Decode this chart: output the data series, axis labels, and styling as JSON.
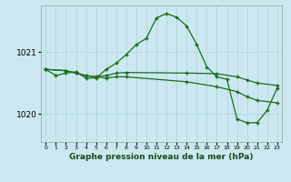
{
  "title": "Graphe pression niveau de la mer (hPa)",
  "bg_color": "#cbe8f0",
  "grid_color": "#b8d8dc",
  "line_color": "#1a6b1a",
  "xlim": [
    -0.5,
    23.5
  ],
  "ylim": [
    1019.55,
    1021.75
  ],
  "yticks": [
    1020,
    1021
  ],
  "xtick_labels": [
    "0",
    "1",
    "2",
    "3",
    "4",
    "5",
    "6",
    "7",
    "8",
    "9",
    "10",
    "11",
    "12",
    "13",
    "14",
    "15",
    "16",
    "17",
    "18",
    "19",
    "20",
    "21",
    "22",
    "23"
  ],
  "series1_x": [
    0,
    1,
    2,
    3,
    4,
    5,
    6,
    7,
    8,
    9,
    10,
    11,
    12,
    13,
    14,
    15,
    16,
    17,
    18,
    19,
    20,
    21,
    22,
    23
  ],
  "series1_y": [
    1020.72,
    1020.62,
    1020.66,
    1020.68,
    1020.58,
    1020.58,
    1020.72,
    1020.82,
    1020.96,
    1021.12,
    1021.22,
    1021.55,
    1021.62,
    1021.56,
    1021.42,
    1021.12,
    1020.76,
    1020.6,
    1020.56,
    1019.92,
    1019.86,
    1019.86,
    1020.06,
    1020.42
  ],
  "series2_x": [
    0,
    2,
    3,
    4,
    5,
    6,
    7,
    8,
    14,
    17,
    19,
    20,
    21,
    23
  ],
  "series2_y": [
    1020.72,
    1020.7,
    1020.66,
    1020.62,
    1020.6,
    1020.62,
    1020.66,
    1020.67,
    1020.66,
    1020.65,
    1020.6,
    1020.55,
    1020.5,
    1020.46
  ],
  "series3_x": [
    0,
    2,
    3,
    4,
    5,
    6,
    7,
    8,
    14,
    17,
    19,
    20,
    21,
    23
  ],
  "series3_y": [
    1020.72,
    1020.7,
    1020.66,
    1020.62,
    1020.6,
    1020.58,
    1020.6,
    1020.6,
    1020.52,
    1020.44,
    1020.36,
    1020.28,
    1020.22,
    1020.18
  ]
}
